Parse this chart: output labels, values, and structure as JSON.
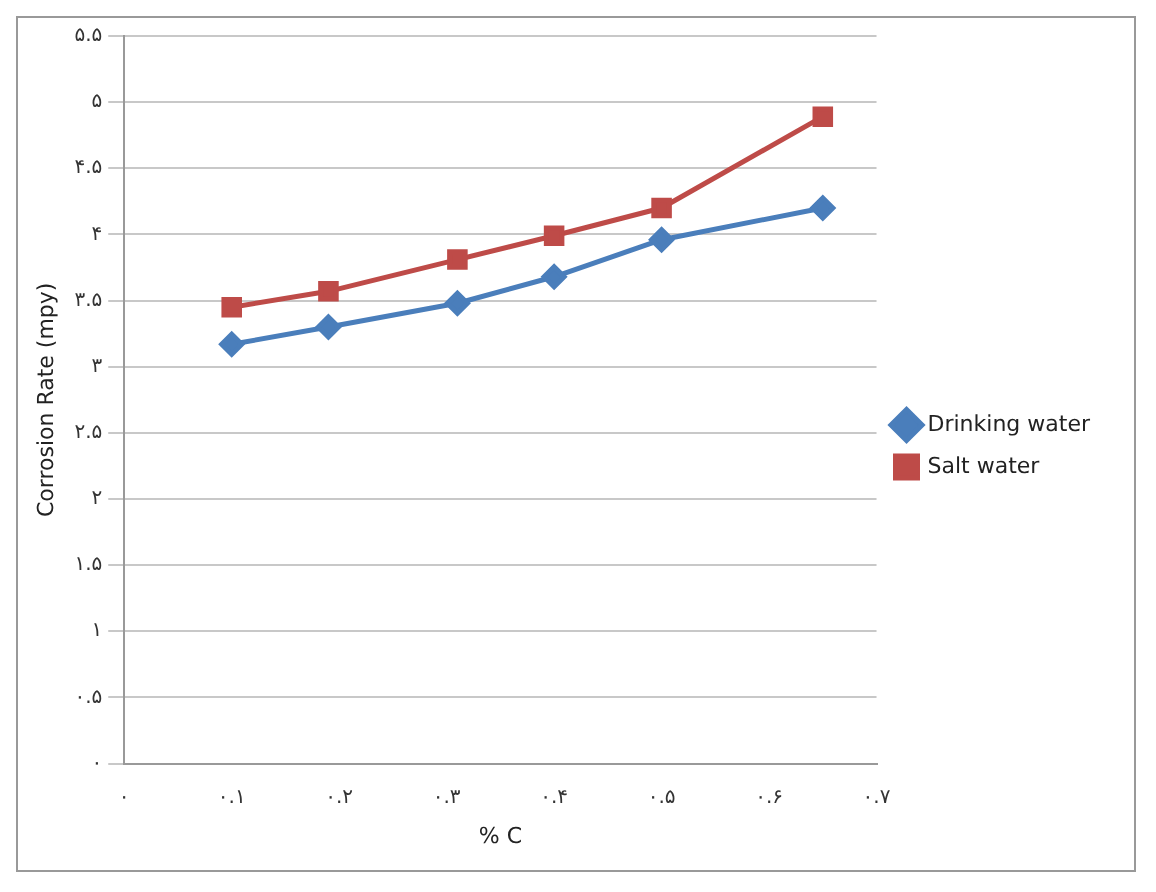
{
  "chart_data": {
    "type": "line",
    "xlabel": "% C",
    "ylabel": "Corrosion Rate (mpy)",
    "xlim": [
      0,
      0.7
    ],
    "xticks": [
      {
        "value": 0,
        "label": "۰"
      },
      {
        "value": 0.1,
        "label": "۰.۱"
      },
      {
        "value": 0.2,
        "label": "۰.۲"
      },
      {
        "value": 0.3,
        "label": "۰.۳"
      },
      {
        "value": 0.4,
        "label": "۰.۴"
      },
      {
        "value": 0.5,
        "label": "۰.۵"
      },
      {
        "value": 0.6,
        "label": "۰.۶"
      },
      {
        "value": 0.7,
        "label": "۰.۷"
      }
    ],
    "ylim": [
      0,
      5.5
    ],
    "yticks": [
      {
        "value": 0,
        "label": "۰"
      },
      {
        "value": 0.5,
        "label": "۰.۵"
      },
      {
        "value": 1,
        "label": "۱"
      },
      {
        "value": 1.5,
        "label": "۱.۵"
      },
      {
        "value": 2,
        "label": "۲"
      },
      {
        "value": 2.5,
        "label": "۲.۵"
      },
      {
        "value": 3,
        "label": "۳"
      },
      {
        "value": 3.5,
        "label": "۳.۵"
      },
      {
        "value": 4,
        "label": "۴"
      },
      {
        "value": 4.5,
        "label": "۴.۵"
      },
      {
        "value": 5,
        "label": "۵"
      },
      {
        "value": 5.5,
        "label": "۵.۵"
      }
    ],
    "grid": "y",
    "legend": "right",
    "line_style": "solid",
    "x": [
      0.1,
      0.19,
      0.31,
      0.4,
      0.5,
      0.65
    ],
    "series": [
      {
        "name": "Drinking water",
        "color": "#4a7ebb",
        "marker": "diamond",
        "values": [
          3.17,
          3.3,
          3.48,
          3.68,
          3.96,
          4.2
        ]
      },
      {
        "name": "Salt water",
        "color": "#be4b48",
        "marker": "square",
        "values": [
          3.45,
          3.57,
          3.81,
          3.99,
          4.2,
          4.89
        ]
      }
    ]
  }
}
